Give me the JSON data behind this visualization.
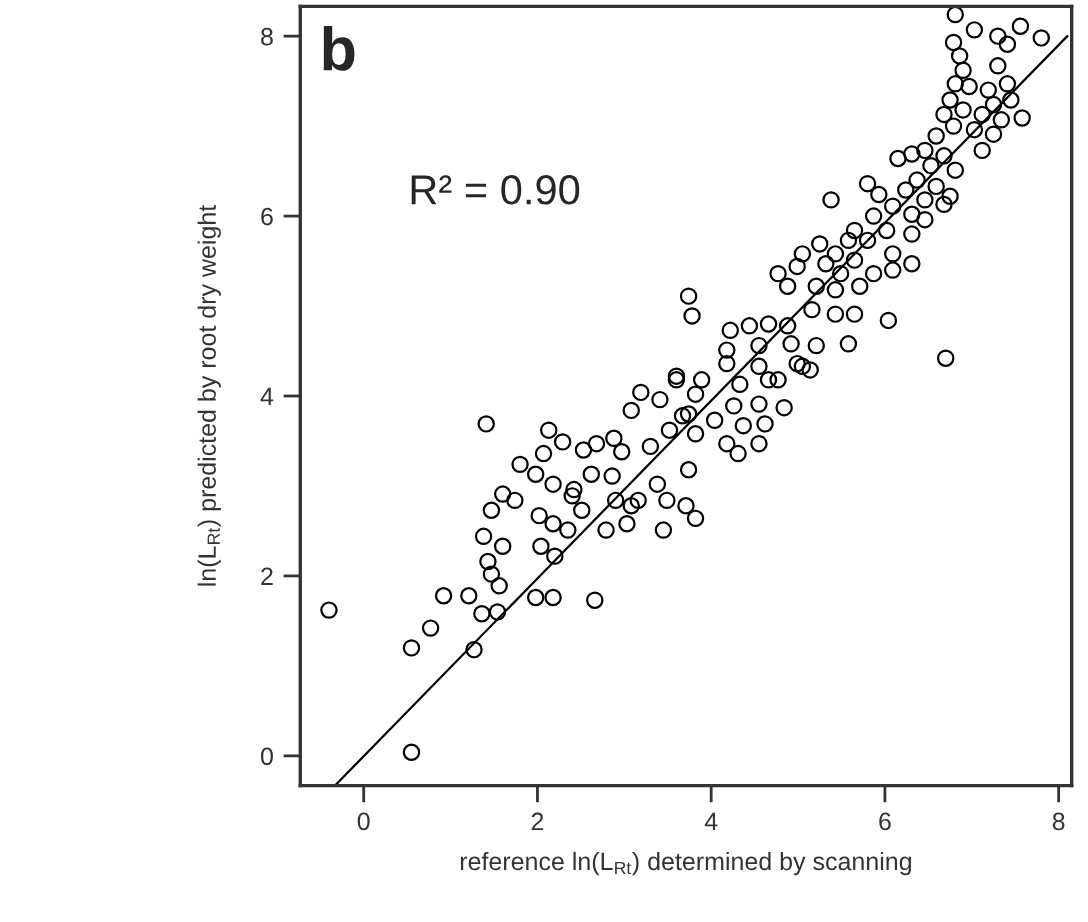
{
  "chart_data": {
    "type": "scatter",
    "xlabel": "reference ln(L$_{Rt}$) determined by scanning",
    "ylabel": "ln(L$_{Rt}$) predicted by root dry weight",
    "annotations": [
      "b",
      "R² = 0.90"
    ],
    "xlim": [
      -0.73,
      8.15
    ],
    "xticks": [
      0,
      2,
      4,
      6,
      8
    ],
    "ylim": [
      -0.33,
      8.33
    ],
    "yticks": [
      0,
      2,
      4,
      6,
      8
    ],
    "grid": false,
    "legend": false,
    "series": [
      {
        "color": "#000000",
        "marker": "circle",
        "x": [
          -0.4,
          0.55,
          0.55,
          0.77,
          0.92,
          1.27,
          1.21,
          1.36,
          1.54,
          1.56,
          1.47,
          1.43,
          1.38,
          1.6,
          1.47,
          1.6,
          1.74,
          1.41,
          1.8,
          1.98,
          2.18,
          2.04,
          2.2,
          2.02,
          2.18,
          1.98,
          2.18,
          2.07,
          2.13,
          2.29,
          2.35,
          2.4,
          2.51,
          2.42,
          2.53,
          2.66,
          2.62,
          2.68,
          2.79,
          2.86,
          2.88,
          2.9,
          2.97,
          3.03,
          3.08,
          3.16,
          3.08,
          3.19,
          3.3,
          3.38,
          3.45,
          3.41,
          3.52,
          3.49,
          3.6,
          3.67,
          6.81,
          7.03,
          7.56,
          7.8,
          7.3,
          7.41,
          6.79,
          6.86,
          7.3,
          6.9,
          6.81,
          6.97,
          7.19,
          7.41,
          6.75,
          7.25,
          7.45,
          6.68,
          6.9,
          7.12,
          7.34,
          7.58,
          6.79,
          7.03,
          7.25,
          6.59,
          7.12,
          6.46,
          6.68,
          6.15,
          6.31,
          6.53,
          6.81,
          6.37,
          6.59,
          6.24,
          6.75,
          5.38,
          5.8,
          5.93,
          6.46,
          6.68,
          6.09,
          6.31,
          5.87,
          6.46,
          5.65,
          6.02,
          6.31,
          5.58,
          5.8,
          5.25,
          5.43,
          5.05,
          6.09,
          5.65,
          6.31,
          5.32,
          4.77,
          4.99,
          5.49,
          5.87,
          6.09,
          4.88,
          5.21,
          5.43,
          5.71,
          3.74,
          3.78,
          4.22,
          4.44,
          4.66,
          4.88,
          5.16,
          5.43,
          5.65,
          6.04,
          4.18,
          4.55,
          4.92,
          5.21,
          5.58,
          4.99,
          6.7,
          3.6,
          3.89,
          4.33,
          4.66,
          5.14,
          4.18,
          4.55,
          5.05,
          4.77,
          3.82,
          4.26,
          4.55,
          4.84,
          3.74,
          4.04,
          4.37,
          4.62,
          3.82,
          4.18,
          4.55,
          4.31,
          3.74,
          3.71,
          3.82
        ],
        "values": [
          1.62,
          0.04,
          1.2,
          1.42,
          1.78,
          1.18,
          1.78,
          1.58,
          1.6,
          1.89,
          2.02,
          2.16,
          2.44,
          2.33,
          2.73,
          2.91,
          2.84,
          3.69,
          3.24,
          1.76,
          1.76,
          2.33,
          2.22,
          2.67,
          2.58,
          3.13,
          3.02,
          3.36,
          3.62,
          3.49,
          2.51,
          2.89,
          2.73,
          2.96,
          3.4,
          1.73,
          3.13,
          3.47,
          2.51,
          3.11,
          3.53,
          2.84,
          3.38,
          2.58,
          2.78,
          2.84,
          3.84,
          4.04,
          3.44,
          3.02,
          2.51,
          3.96,
          3.62,
          2.84,
          4.18,
          3.78,
          8.24,
          8.07,
          8.11,
          7.98,
          8.0,
          7.91,
          7.93,
          7.78,
          7.67,
          7.62,
          7.47,
          7.44,
          7.4,
          7.47,
          7.29,
          7.24,
          7.29,
          7.13,
          7.18,
          7.13,
          7.07,
          7.09,
          7.0,
          6.96,
          6.91,
          6.89,
          6.73,
          6.73,
          6.67,
          6.64,
          6.69,
          6.56,
          6.51,
          6.4,
          6.33,
          6.29,
          6.22,
          6.18,
          6.36,
          6.24,
          6.18,
          6.13,
          6.11,
          6.02,
          6.0,
          5.96,
          5.84,
          5.84,
          5.8,
          5.73,
          5.73,
          5.69,
          5.58,
          5.58,
          5.58,
          5.51,
          5.47,
          5.47,
          5.36,
          5.44,
          5.36,
          5.36,
          5.4,
          5.22,
          5.22,
          5.18,
          5.22,
          5.11,
          4.89,
          4.73,
          4.78,
          4.8,
          4.78,
          4.96,
          4.91,
          4.91,
          4.84,
          4.51,
          4.56,
          4.58,
          4.56,
          4.58,
          4.36,
          4.42,
          4.22,
          4.18,
          4.13,
          4.18,
          4.29,
          4.36,
          4.33,
          4.33,
          4.18,
          4.02,
          3.89,
          3.91,
          3.87,
          3.8,
          3.73,
          3.67,
          3.69,
          3.58,
          3.47,
          3.47,
          3.36,
          3.18,
          2.78,
          2.64
        ]
      },
      {
        "type": "line",
        "color": "#000000",
        "line_style": "solid",
        "x": [
          -0.33,
          8.1
        ],
        "values": [
          -0.33,
          8.0
        ]
      }
    ]
  }
}
